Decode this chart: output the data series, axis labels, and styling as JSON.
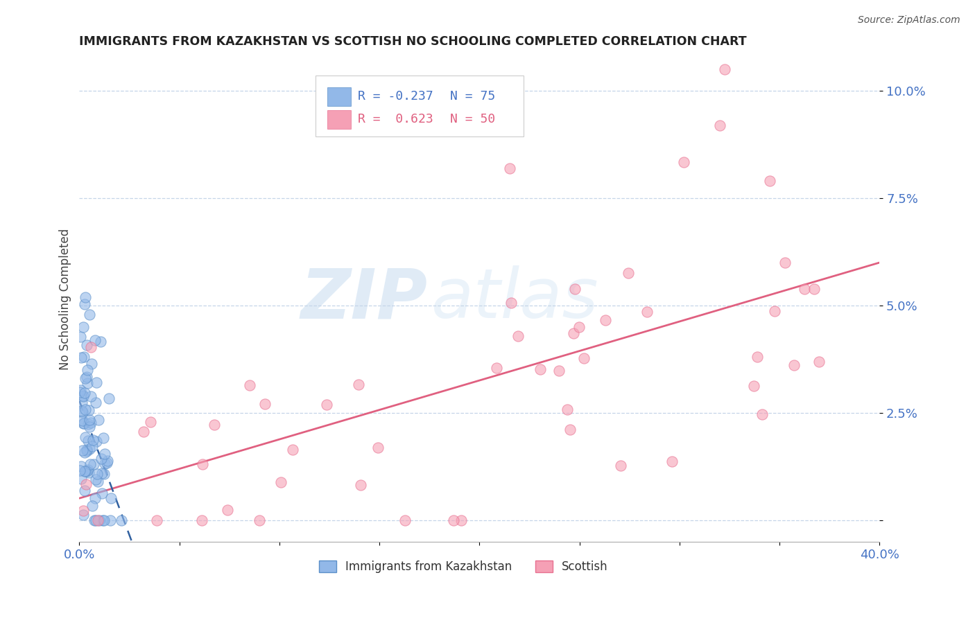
{
  "title": "IMMIGRANTS FROM KAZAKHSTAN VS SCOTTISH NO SCHOOLING COMPLETED CORRELATION CHART",
  "source_text": "Source: ZipAtlas.com",
  "ylabel": "No Schooling Completed",
  "watermark_zip": "ZIP",
  "watermark_atlas": "atlas",
  "xlim": [
    0.0,
    0.4
  ],
  "ylim": [
    -0.005,
    0.108
  ],
  "xticks": [
    0.0,
    0.05,
    0.1,
    0.15,
    0.2,
    0.25,
    0.3,
    0.35,
    0.4
  ],
  "yticks": [
    0.0,
    0.025,
    0.05,
    0.075,
    0.1
  ],
  "ytick_labels": [
    "",
    "2.5%",
    "5.0%",
    "7.5%",
    "10.0%"
  ],
  "blue_R": -0.237,
  "blue_N": 75,
  "pink_R": 0.623,
  "pink_N": 50,
  "blue_color": "#92b8e8",
  "blue_edge_color": "#5b8fc9",
  "pink_color": "#f5a0b5",
  "pink_edge_color": "#e87090",
  "blue_line_color": "#3060a0",
  "pink_line_color": "#e06080",
  "title_color": "#222222",
  "tick_color": "#4472c4",
  "grid_color": "#c5d5e8",
  "background_color": "#ffffff",
  "seed": 42
}
